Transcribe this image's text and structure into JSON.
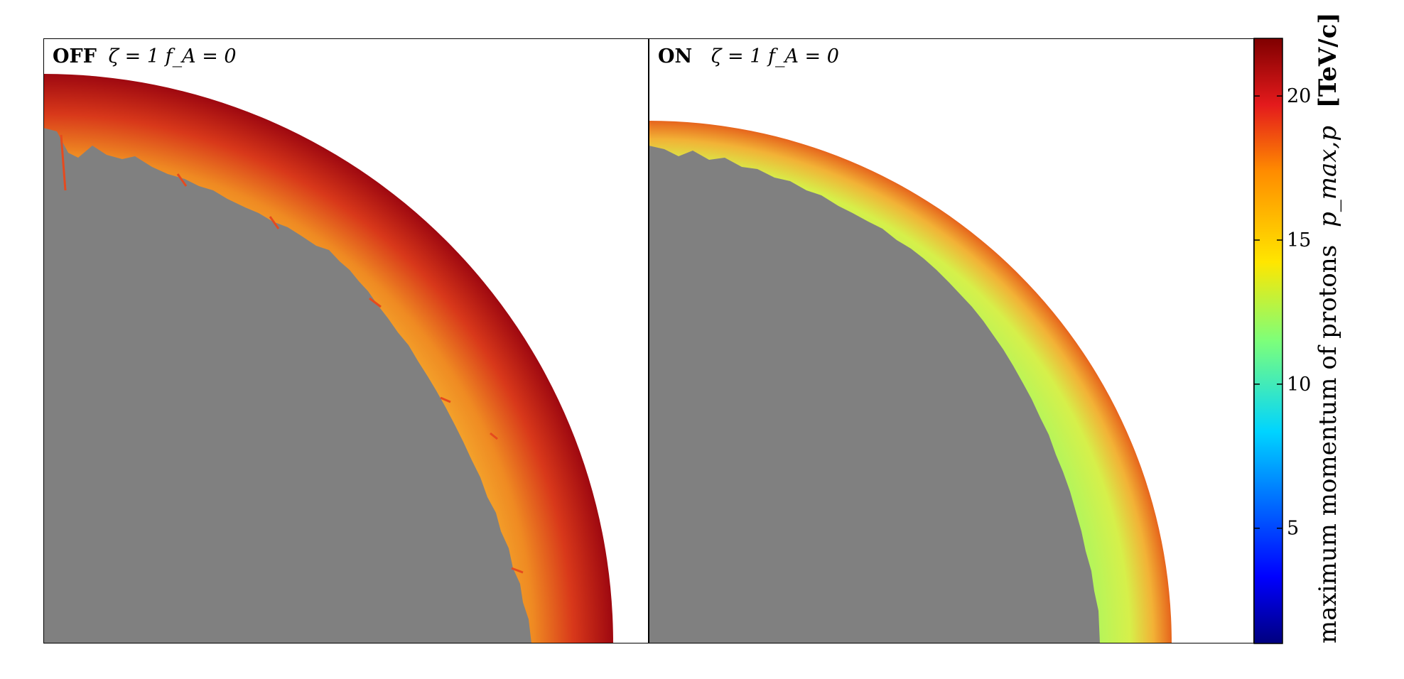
{
  "chart_data": [
    {
      "type": "heatmap",
      "panel_label": {
        "mode": "OFF",
        "params": "ζ = 1 f_A = 0"
      },
      "rendering": "quarter-shell map of maximum proton momentum; unshocked/interior region shown gray",
      "shell_color_range_TeV": [
        16,
        22
      ]
    },
    {
      "type": "heatmap",
      "panel_label": {
        "mode": "ON",
        "params": "ζ = 1 f_A = 0"
      },
      "rendering": "quarter-shell map of maximum proton momentum; unshocked/interior region shown gray",
      "shell_color_range_TeV": [
        13,
        18
      ]
    }
  ],
  "colorbar": {
    "range": [
      1,
      22
    ],
    "ticks": [
      5,
      10,
      15,
      20
    ],
    "tick_labels": [
      "5",
      "10",
      "15",
      "20"
    ],
    "label": "maximum momentum of protons",
    "symbol": "p_max,p",
    "unit": "[TeV/c]",
    "colormap": "jet"
  }
}
